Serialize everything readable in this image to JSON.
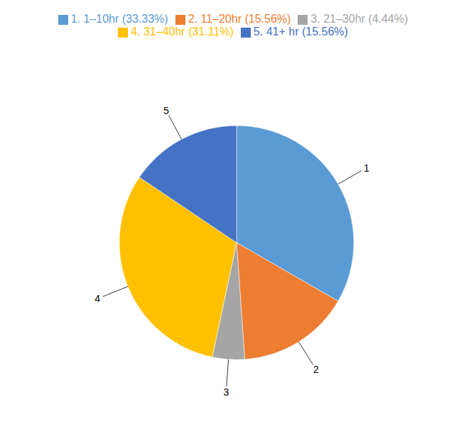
{
  "chart_data": {
    "type": "pie",
    "categories": [
      "1. 1–10hr (33.33%)",
      "2. 11–20hr (15.56%)",
      "3. 21–30hr (4.44%)",
      "4. 31–40hr (31.11%)",
      "5. 41+ hr (15.56%)"
    ],
    "values": [
      33.33,
      15.56,
      4.44,
      31.11,
      15.56
    ],
    "colors": [
      "#5B9BD5",
      "#ED7D31",
      "#A5A5A5",
      "#FFC000",
      "#4472C4"
    ],
    "annotations": [
      "1",
      "2",
      "3",
      "4",
      "5"
    ],
    "legend": "top"
  }
}
